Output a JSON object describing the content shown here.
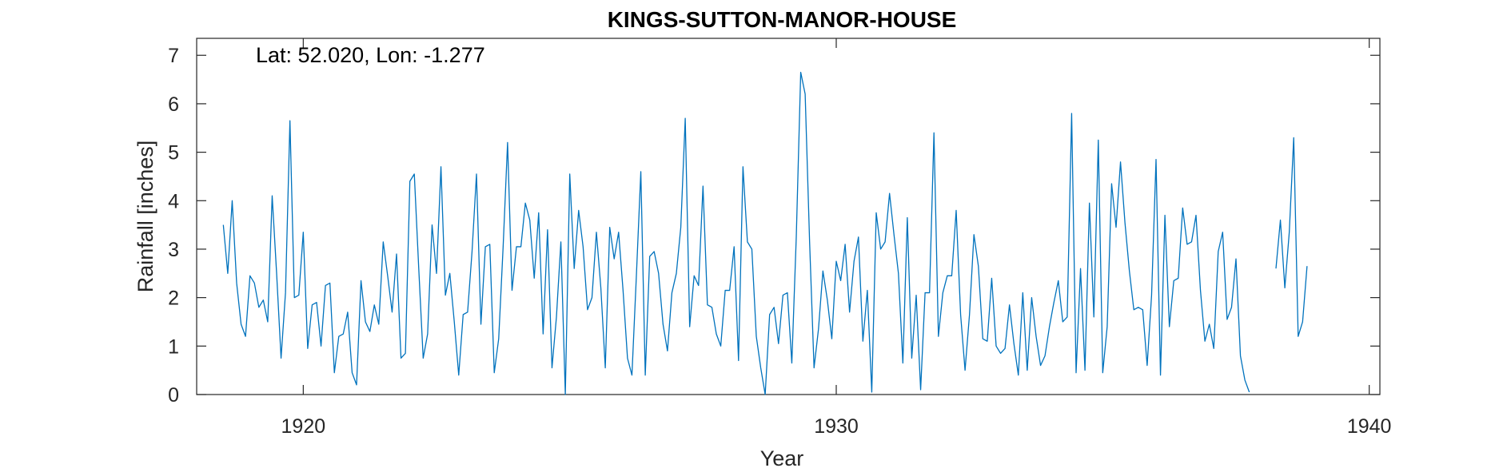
{
  "chart_data": {
    "type": "line",
    "title": "KINGS-SUTTON-MANOR-HOUSE",
    "annotation": "Lat: 52.020, Lon: -1.277",
    "xlabel": "Year",
    "ylabel": "Rainfall [inches]",
    "xlim": [
      1918,
      1940.2
    ],
    "ylim": [
      0,
      7.35
    ],
    "xticks": [
      1920,
      1930,
      1940
    ],
    "yticks": [
      0,
      1,
      2,
      3,
      4,
      5,
      6,
      7
    ],
    "grid": false,
    "line_color": "#0072BD",
    "series": [
      {
        "start": 1918.5,
        "step": 0.0833333,
        "values": [
          3.5,
          2.5,
          4.0,
          2.3,
          1.45,
          1.2,
          2.45,
          2.3,
          1.8,
          1.95,
          1.5,
          4.1,
          2.5,
          0.75,
          2.1,
          5.65,
          2.0,
          2.05,
          3.35,
          0.95,
          1.85,
          1.9,
          1.0,
          2.25,
          2.3,
          0.45,
          1.2,
          1.25,
          1.7,
          0.45,
          0.2,
          2.35,
          1.5,
          1.3,
          1.85,
          1.45,
          3.15,
          2.45,
          1.7,
          2.9,
          0.75,
          0.85,
          4.4,
          4.55,
          2.6,
          0.75,
          1.25,
          3.5,
          2.5,
          4.7,
          2.05,
          2.5,
          1.5,
          0.4,
          1.65,
          1.7,
          2.95,
          4.55,
          1.45,
          3.05,
          3.1,
          0.45,
          1.15,
          3.05,
          5.2,
          2.15,
          3.05,
          3.05,
          3.95,
          3.6,
          2.4,
          3.75,
          1.25,
          3.4,
          0.55,
          1.6,
          3.15,
          0.0,
          4.55,
          2.6,
          3.8,
          3.05,
          1.75,
          2.0,
          3.35,
          2.2,
          0.55,
          3.45,
          2.8,
          3.35,
          2.15,
          0.75,
          0.4,
          2.45,
          4.6,
          0.4,
          2.85,
          2.95,
          2.5,
          1.45,
          0.9,
          2.1,
          2.5,
          3.45,
          5.7,
          1.4,
          2.45,
          2.25,
          4.3,
          1.85,
          1.8,
          1.25,
          1.0,
          2.15,
          2.15,
          3.05,
          0.7,
          4.7,
          3.15,
          3.0,
          1.2,
          0.55,
          0.0,
          1.65,
          1.8,
          1.05,
          2.05,
          2.1,
          0.65,
          3.25,
          6.65,
          6.2,
          3.15,
          0.55,
          1.35,
          2.55,
          1.95,
          1.15,
          2.75,
          2.35,
          3.1,
          1.7,
          2.75,
          3.25,
          1.1,
          2.15,
          0.05,
          3.75,
          3.0,
          3.15,
          4.15,
          3.3,
          2.5,
          0.65,
          3.65,
          0.75,
          2.05,
          0.1,
          2.1,
          2.1,
          5.4,
          1.2,
          2.1,
          2.45,
          2.45,
          3.8,
          1.65,
          0.5,
          1.65,
          3.3,
          2.65,
          1.15,
          1.1,
          2.4,
          1.0,
          0.85,
          0.95,
          1.85,
          1.05,
          0.4,
          2.1,
          0.5,
          2.0,
          1.2,
          0.6,
          0.8,
          1.4,
          1.9,
          2.35,
          1.5,
          1.6,
          5.8,
          0.45,
          2.6,
          0.5,
          3.95,
          1.6,
          5.25,
          0.45,
          1.4,
          4.35,
          3.45,
          4.8,
          3.55,
          2.55,
          1.75,
          1.8,
          1.75,
          0.6,
          2.05,
          4.85,
          0.4,
          3.7,
          1.4,
          2.35,
          2.4,
          3.85,
          3.1,
          3.15,
          3.7,
          2.15,
          1.1,
          1.45,
          0.95,
          2.95,
          3.35,
          1.55,
          1.8,
          2.8,
          0.8,
          0.3,
          0.05,
          null,
          null,
          null,
          null,
          null,
          2.6,
          3.6,
          2.2,
          3.35,
          5.3,
          1.2,
          1.5,
          2.65
        ]
      }
    ]
  }
}
